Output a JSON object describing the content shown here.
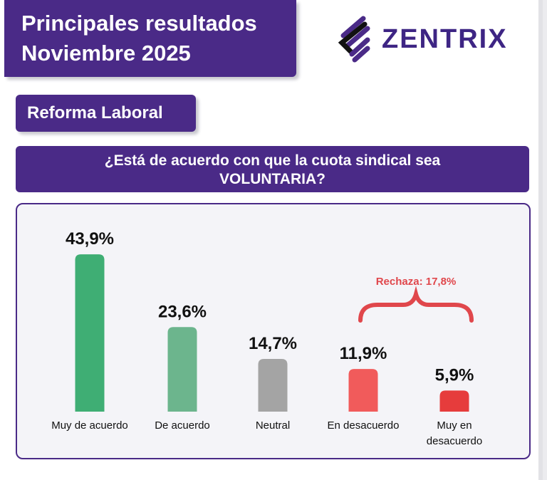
{
  "header": {
    "title_line1": "Principales resultados",
    "title_line2": "Noviembre 2025",
    "brand": "ZENTRIX"
  },
  "section": "Reforma Laboral",
  "question": {
    "line1": "¿Está de acuerdo con que la cuota sindical sea",
    "line2": "VOLUNTARIA?"
  },
  "chart_data": {
    "type": "bar",
    "title": "¿Está de acuerdo con que la cuota sindical sea VOLUNTARIA?",
    "categories": [
      "Muy de acuerdo",
      "De acuerdo",
      "Neutral",
      "En desacuerdo",
      "Muy en desacuerdo"
    ],
    "values": [
      43.9,
      23.6,
      14.7,
      11.9,
      5.9
    ],
    "labels": [
      "43,9%",
      "23,6%",
      "14,7%",
      "11,9%",
      "5,9%"
    ],
    "colors": [
      "#3fae74",
      "#6cb58d",
      "#a4a4a4",
      "#f15b5b",
      "#e63c3c"
    ],
    "annotation": {
      "text": "Rechaza: 17,8%",
      "spans": [
        "En desacuerdo",
        "Muy en desacuerdo"
      ],
      "color": "#e0474c"
    },
    "ylim": [
      0,
      45
    ]
  }
}
